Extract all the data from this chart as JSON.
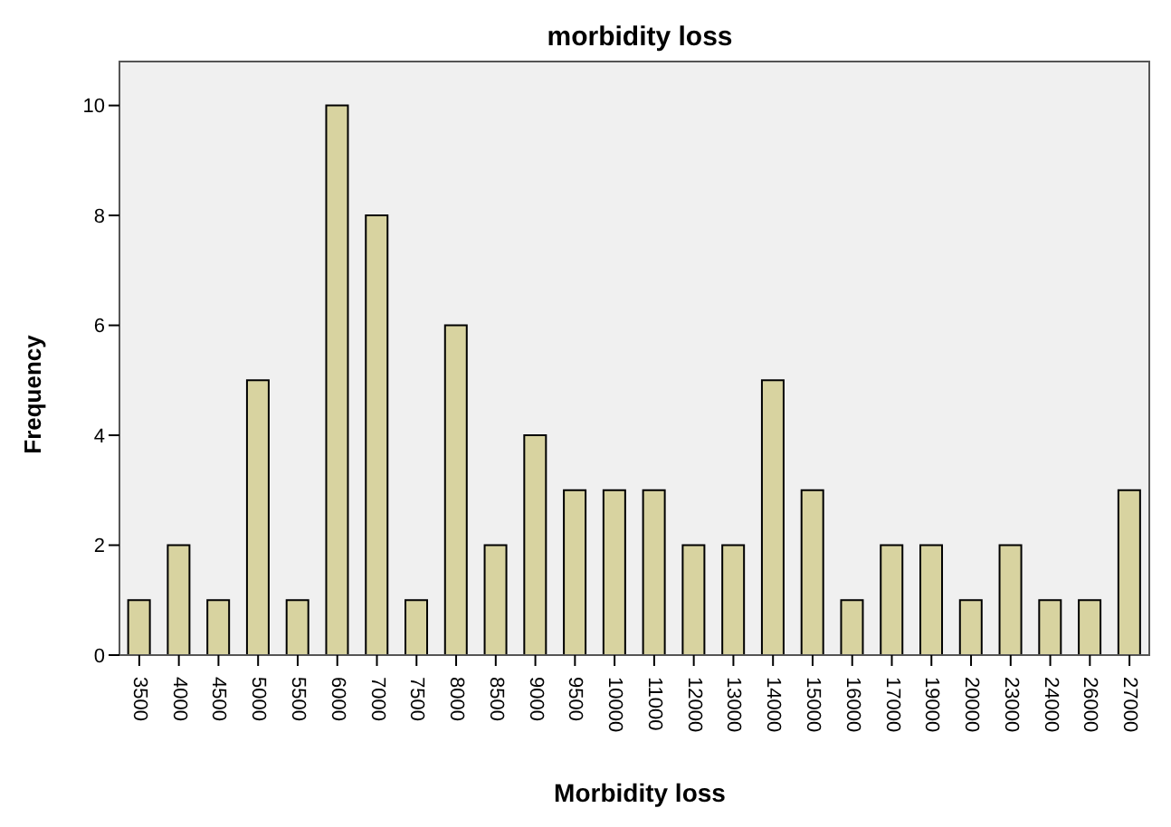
{
  "chart_data": {
    "type": "bar",
    "title": "morbidity loss",
    "xlabel": "Morbidity loss",
    "ylabel": "Frequency",
    "categories": [
      "3500",
      "4000",
      "4500",
      "5000",
      "5500",
      "6000",
      "7000",
      "7500",
      "8000",
      "8500",
      "9000",
      "9500",
      "10000",
      "11000",
      "12000",
      "13000",
      "14000",
      "15000",
      "16000",
      "17000",
      "19000",
      "20000",
      "23000",
      "24000",
      "26000",
      "27000"
    ],
    "values": [
      1,
      2,
      1,
      5,
      1,
      10,
      8,
      1,
      6,
      2,
      4,
      3,
      3,
      3,
      2,
      2,
      5,
      3,
      1,
      2,
      2,
      1,
      2,
      1,
      1,
      3
    ],
    "color": "#d8d3a0",
    "ylim": [
      0,
      10.8
    ],
    "yticks": [
      0,
      2,
      4,
      6,
      8,
      10
    ],
    "legend": false
  }
}
